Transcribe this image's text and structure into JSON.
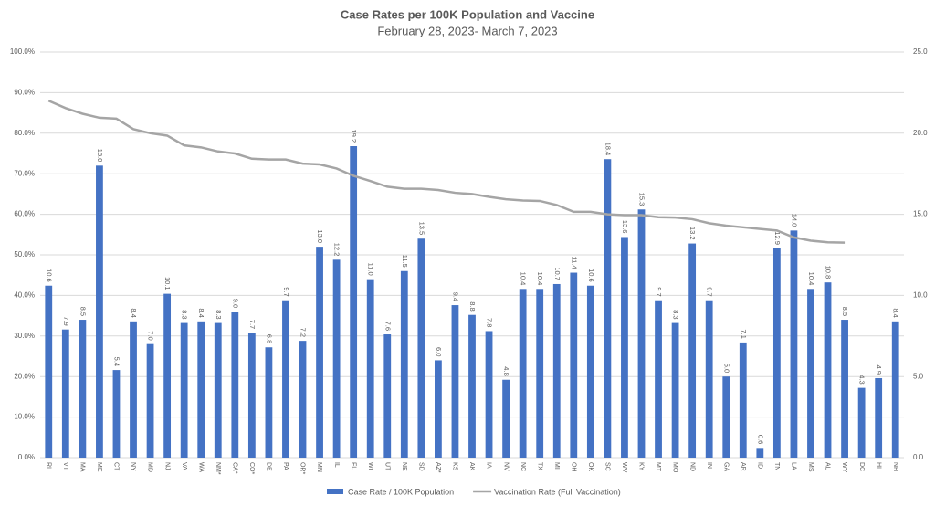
{
  "chart_data": {
    "type": "bar-line",
    "title": "Case Rates per 100K Population and Vaccine",
    "subtitle": "February 28, 2023- March 7, 2023",
    "categories": [
      "RI",
      "VT",
      "MA",
      "ME",
      "CT",
      "NY",
      "MD",
      "NJ",
      "VA",
      "WA",
      "NM*",
      "CA*",
      "CO*",
      "DE",
      "PA",
      "OR*",
      "MN",
      "IL",
      "FL",
      "WI",
      "UT",
      "NE",
      "SD",
      "AZ*",
      "KS",
      "AK",
      "IA",
      "NV",
      "NC",
      "TX",
      "MI",
      "OH",
      "OK",
      "SC",
      "WV",
      "KY",
      "MT",
      "MO",
      "ND",
      "IN",
      "GA",
      "AR",
      "ID",
      "TN",
      "LA",
      "MS",
      "AL",
      "WY",
      "DC",
      "HI",
      "NH"
    ],
    "series": [
      {
        "name": "Case Rate / 100K Population",
        "type": "bar",
        "axis": "y2",
        "color": "#4472c4",
        "values": [
          10.6,
          7.9,
          8.5,
          18.0,
          5.4,
          8.4,
          7.0,
          10.1,
          8.3,
          8.4,
          8.3,
          9.0,
          7.7,
          6.8,
          9.7,
          7.2,
          13.0,
          12.2,
          19.2,
          11.0,
          7.6,
          11.5,
          13.5,
          6.0,
          9.4,
          8.8,
          7.8,
          4.8,
          10.4,
          10.4,
          10.7,
          11.4,
          10.6,
          18.4,
          13.6,
          15.3,
          9.7,
          8.3,
          13.2,
          9.7,
          5.0,
          7.1,
          0.6,
          12.9,
          14.0,
          10.4,
          10.8,
          8.5,
          4.3,
          4.9,
          8.4
        ],
        "value_labels": [
          "10.6",
          "7.9",
          "8.5",
          "18.0",
          "5.4",
          "8.4",
          "7.0",
          "10.1",
          "8.3",
          "8.4",
          "8.3",
          "9.0",
          "7.7",
          "6.8",
          "9.7",
          "7.2",
          "13.0",
          "12.2",
          "19.2",
          "11.0",
          "7.6",
          "11.5",
          "13.5",
          "6.0",
          "9.4",
          "8.8",
          "7.8",
          "4.8",
          "10.4",
          "10.4",
          "10.7",
          "11.4",
          "10.6",
          "18.4",
          "13.6",
          "15.3",
          "9.7",
          "8.3",
          "13.2",
          "9.7",
          "5.0",
          "7.1",
          "0.6",
          "12.9",
          "14.0",
          "10.4",
          "10.8",
          "8.5",
          "4.3",
          "4.9",
          "8.4"
        ]
      },
      {
        "name": "Vaccination Rate (Full Vaccination)",
        "type": "line",
        "color": "#a5a5a5",
        "values": [
          88,
          86.2,
          84.8,
          83.8,
          83.6,
          81,
          80,
          79.4,
          77,
          76.5,
          75.5,
          75,
          73.7,
          73.5,
          73.5,
          72.5,
          72.3,
          71.3,
          69.5,
          68.2,
          66.8,
          66.3,
          66.3,
          66,
          65.3,
          65,
          64.3,
          63.7,
          63.4,
          63.3,
          62.3,
          60.6,
          60.6,
          60,
          59.8,
          59.8,
          59.3,
          59.2,
          58.8,
          57.8,
          57.2,
          56.8,
          56.4,
          56,
          54.3,
          53.5,
          53.1,
          53,
          null,
          null,
          null
        ]
      }
    ],
    "ylim": [
      0,
      100
    ],
    "yticks": [
      {
        "value": 0,
        "label": "0.0%"
      },
      {
        "value": 10,
        "label": "10.0%"
      },
      {
        "value": 20,
        "label": "20.0%"
      },
      {
        "value": 30,
        "label": "30.0%"
      },
      {
        "value": 40,
        "label": "40.0%"
      },
      {
        "value": 50,
        "label": "50.0%"
      },
      {
        "value": 60,
        "label": "60.0%"
      },
      {
        "value": 70,
        "label": "70.0%"
      },
      {
        "value": 80,
        "label": "80.0%"
      },
      {
        "value": 90,
        "label": "90.0%"
      },
      {
        "value": 100,
        "label": "100.0%"
      }
    ],
    "y2lim": [
      0,
      25
    ],
    "y2ticks": [
      {
        "value": 0,
        "label": "0.0"
      },
      {
        "value": 5,
        "label": "5.0"
      },
      {
        "value": 10,
        "label": "10.0"
      },
      {
        "value": 15,
        "label": "15.0"
      },
      {
        "value": 20,
        "label": "20.0"
      },
      {
        "value": 25,
        "label": "25.0"
      }
    ],
    "grid": true
  }
}
